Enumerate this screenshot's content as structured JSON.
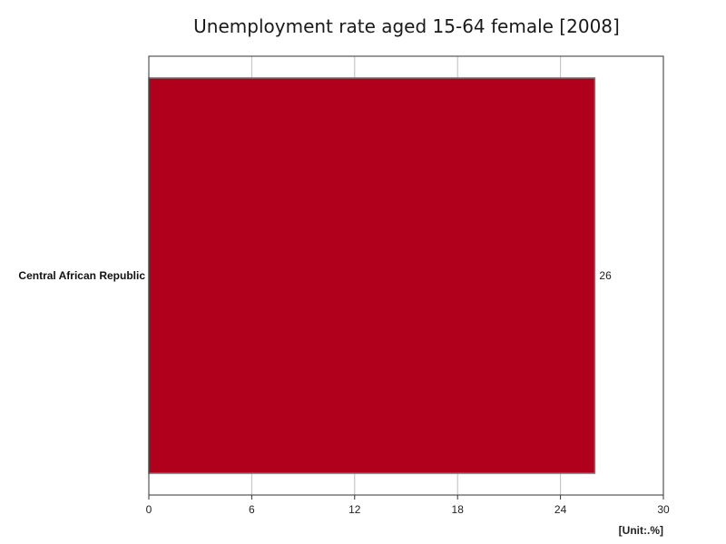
{
  "chart_data": {
    "type": "bar",
    "orientation": "horizontal",
    "title": "Unemployment rate aged 15-64 female [2008]",
    "unit_label": "[Unit:.%]",
    "categories": [
      "Central African Republic"
    ],
    "values": [
      26
    ],
    "value_labels": [
      "26"
    ],
    "xlim": [
      0,
      30
    ],
    "x_ticks": [
      0,
      6,
      12,
      18,
      24,
      30
    ],
    "x_tick_labels": [
      "0",
      "6",
      "12",
      "18",
      "24",
      "30"
    ],
    "grid": true,
    "bar_color": "#b0001c"
  }
}
